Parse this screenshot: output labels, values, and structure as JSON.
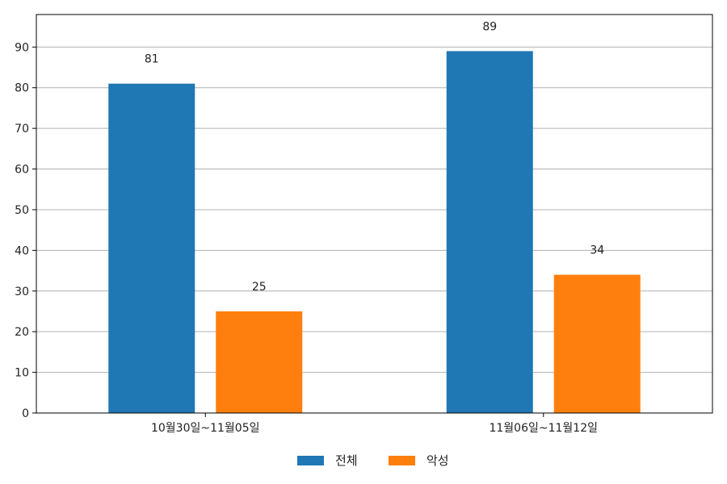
{
  "chart_data": {
    "type": "bar",
    "categories": [
      "10월30일~11월05일",
      "11월06일~11월12일"
    ],
    "series": [
      {
        "name": "전체",
        "values": [
          81,
          89
        ],
        "color": "#1f77b4"
      },
      {
        "name": "악성",
        "values": [
          25,
          34
        ],
        "color": "#ff7f0e"
      }
    ],
    "ylim": [
      0,
      98
    ],
    "yticks": [
      0,
      10,
      20,
      30,
      40,
      50,
      60,
      70,
      80,
      90
    ],
    "grid": true,
    "legend_position": "bottom-center"
  }
}
